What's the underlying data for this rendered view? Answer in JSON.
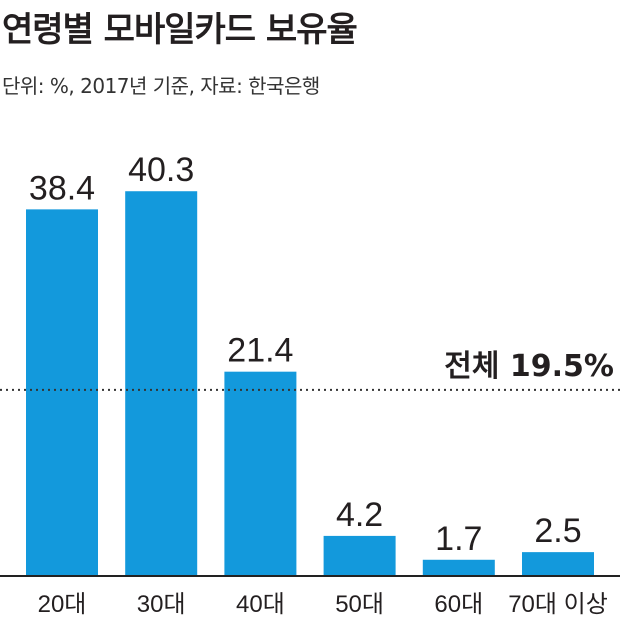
{
  "header": {
    "title": "연령별 모바일카드 보유율",
    "subtitle": "단위: %, 2017년 기준, 자료: 한국은행"
  },
  "colors": {
    "bar": "#1399dc",
    "axis": "#222222",
    "reference_line": "#333333"
  },
  "chart_data": {
    "type": "bar",
    "title": "연령별 모바일카드 보유율",
    "subtitle": "단위: %, 2017년 기준, 자료: 한국은행",
    "categories": [
      "20대",
      "30대",
      "40대",
      "50대",
      "60대",
      "70대 이상"
    ],
    "values": [
      38.4,
      40.3,
      21.4,
      4.2,
      1.7,
      2.5
    ],
    "value_labels": [
      "38.4",
      "40.3",
      "21.4",
      "4.2",
      "1.7",
      "2.5"
    ],
    "ylim": [
      0,
      42
    ],
    "grid": false,
    "reference_line": {
      "value": 19.5,
      "label": "전체 19.5%",
      "style": "dotted"
    }
  }
}
